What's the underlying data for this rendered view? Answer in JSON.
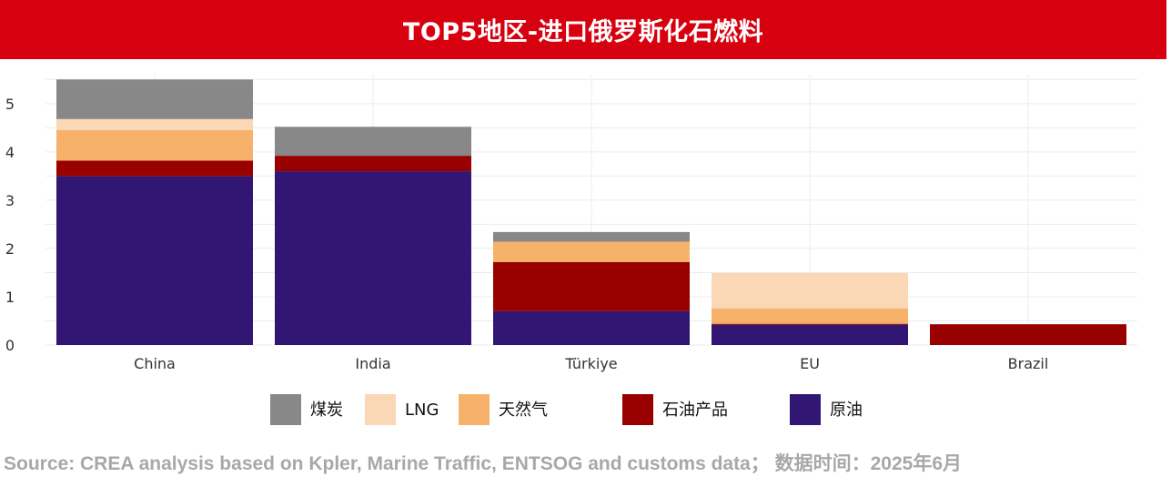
{
  "chart_data": {
    "type": "bar",
    "stacked": true,
    "title": "TOP5地区-进口俄罗斯化石燃料",
    "categories": [
      "China",
      "India",
      "Türkiye",
      "EU",
      "Brazil"
    ],
    "series": [
      {
        "name": "原油",
        "color": "#311673",
        "values": [
          3.5,
          3.6,
          0.7,
          0.42,
          0
        ]
      },
      {
        "name": "石油产品",
        "color": "#990000",
        "values": [
          0.32,
          0.32,
          1.02,
          0.02,
          0.43
        ]
      },
      {
        "name": "天然气",
        "color": "#f6b26b",
        "values": [
          0.63,
          0,
          0.42,
          0.32,
          0
        ]
      },
      {
        "name": "LNG",
        "color": "#fad7b5",
        "values": [
          0.23,
          0,
          0,
          0.73,
          0
        ]
      },
      {
        "name": "煤炭",
        "color": "#888888",
        "values": [
          0.82,
          0.6,
          0.2,
          0,
          0
        ]
      }
    ],
    "ylim": [
      0,
      5.6
    ],
    "yticks": [
      0,
      1,
      2,
      3,
      4,
      5
    ],
    "grid": true,
    "legend_position": "bottom",
    "legend_order": [
      "煤炭",
      "LNG",
      "天然气",
      "石油产品",
      "原油"
    ]
  },
  "source": "Source: CREA analysis based on Kpler, Marine Traffic, ENTSOG and customs data； 数据时间：2025年6月"
}
